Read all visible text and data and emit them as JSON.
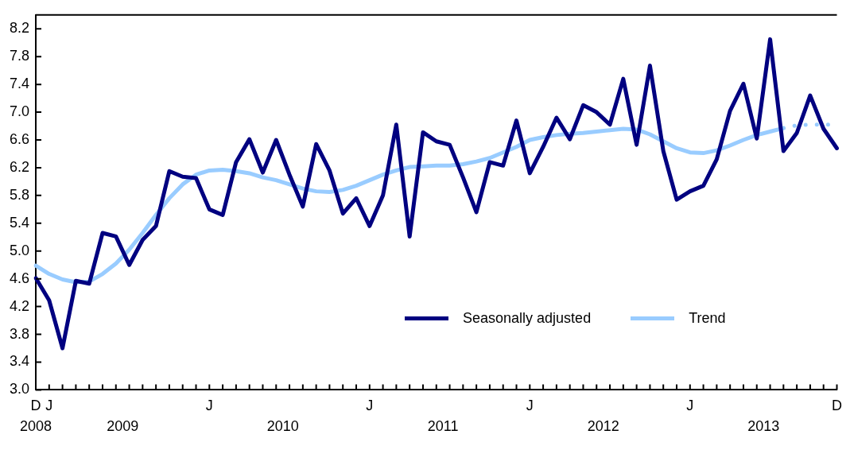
{
  "chart_data": {
    "type": "line",
    "categories": [
      "D",
      "J",
      null,
      null,
      null,
      null,
      null,
      null,
      null,
      null,
      null,
      null,
      null,
      "J",
      null,
      null,
      null,
      null,
      null,
      null,
      null,
      null,
      null,
      null,
      null,
      "J",
      null,
      null,
      null,
      null,
      null,
      null,
      null,
      null,
      null,
      null,
      null,
      "J",
      null,
      null,
      null,
      null,
      null,
      null,
      null,
      null,
      null,
      null,
      null,
      "J",
      null,
      null,
      null,
      null,
      null,
      null,
      null,
      null,
      null,
      null,
      "D"
    ],
    "series": [
      {
        "name": "Seasonally adjusted",
        "color": "#000080",
        "values": [
          4.61,
          4.29,
          3.6,
          4.57,
          4.53,
          5.26,
          5.21,
          4.8,
          5.16,
          5.36,
          6.15,
          6.07,
          6.05,
          5.6,
          5.52,
          6.28,
          6.61,
          6.13,
          6.6,
          6.1,
          5.64,
          6.54,
          6.16,
          5.54,
          5.76,
          5.36,
          5.8,
          6.82,
          5.21,
          6.71,
          6.58,
          6.53,
          6.06,
          5.56,
          6.28,
          6.23,
          6.88,
          6.12,
          6.5,
          6.92,
          6.61,
          7.1,
          7.0,
          6.82,
          7.48,
          6.53,
          7.67,
          6.44,
          5.74,
          5.86,
          5.94,
          6.32,
          7.02,
          7.41,
          6.62,
          8.05,
          6.44,
          6.7,
          7.24,
          6.76,
          6.48
        ]
      },
      {
        "name": "Trend",
        "color": "#99ccff",
        "values": [
          4.79,
          4.67,
          4.59,
          4.55,
          4.56,
          4.67,
          4.82,
          5.02,
          5.26,
          5.52,
          5.76,
          5.96,
          6.1,
          6.16,
          6.17,
          6.15,
          6.12,
          6.06,
          6.02,
          5.96,
          5.9,
          5.86,
          5.85,
          5.88,
          5.94,
          6.02,
          6.1,
          6.16,
          6.21,
          6.22,
          6.23,
          6.23,
          6.25,
          6.29,
          6.34,
          6.42,
          6.5,
          6.6,
          6.64,
          6.67,
          6.69,
          6.7,
          6.72,
          6.74,
          6.76,
          6.75,
          6.68,
          6.58,
          6.48,
          6.42,
          6.41,
          6.45,
          6.52,
          6.6,
          6.67,
          6.72,
          6.77,
          null,
          null,
          null,
          null
        ]
      },
      {
        "color": "#99ccff",
        "line_style": "dotted",
        "values": [
          null,
          null,
          null,
          null,
          null,
          null,
          null,
          null,
          null,
          null,
          null,
          null,
          null,
          null,
          null,
          null,
          null,
          null,
          null,
          null,
          null,
          null,
          null,
          null,
          null,
          null,
          null,
          null,
          null,
          null,
          null,
          null,
          null,
          null,
          null,
          null,
          null,
          null,
          null,
          null,
          null,
          null,
          null,
          null,
          null,
          null,
          null,
          null,
          null,
          null,
          null,
          null,
          null,
          null,
          null,
          null,
          6.77,
          6.81,
          6.82,
          6.82,
          6.82
        ]
      }
    ],
    "ylim": [
      3.0,
      8.4
    ],
    "yticks": [
      {
        "value": 3.0,
        "label": "3.0"
      },
      3.4,
      3.8,
      4.2,
      4.6,
      {
        "value": 5.0,
        "label": "5.0"
      },
      5.4,
      5.8,
      6.2,
      6.6,
      {
        "value": 7.0,
        "label": "7.0"
      },
      7.4,
      7.8,
      8.2
    ],
    "annotations": [
      "2008",
      "2009",
      "2010",
      "2011",
      "2012",
      "2013"
    ],
    "grid": false,
    "legend": "bottom right",
    "marker": "none",
    "line_style": "solid"
  }
}
